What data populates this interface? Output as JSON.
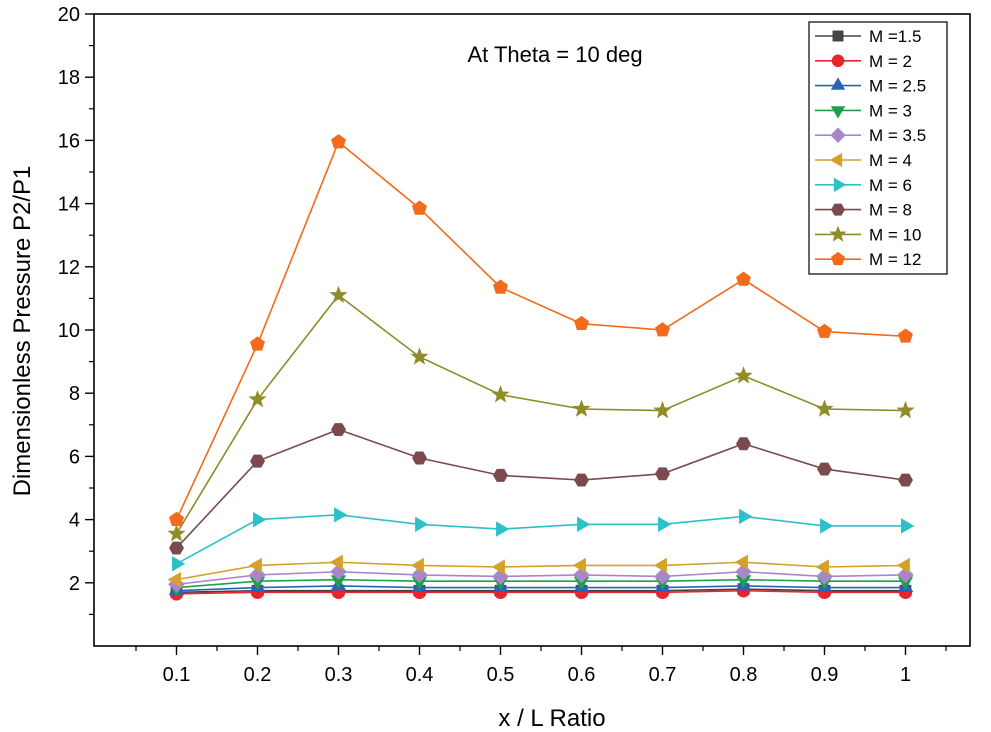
{
  "chart_data": {
    "type": "line",
    "title": "At Theta = 10 deg",
    "xlabel": "x / L Ratio",
    "ylabel": "Dimensionless Pressure P2/P1",
    "x": [
      0.1,
      0.2,
      0.3,
      0.4,
      0.5,
      0.6,
      0.7,
      0.8,
      0.9,
      1.0
    ],
    "x_tick_labels": [
      "0.1",
      "0.2",
      "0.3",
      "0.4",
      "0.5",
      "0.6",
      "0.7",
      "0.8",
      "0.9",
      "1"
    ],
    "xlim": [
      0.0,
      1.05
    ],
    "ylim": [
      0,
      20
    ],
    "y_ticks": [
      2,
      4,
      6,
      8,
      10,
      12,
      14,
      16,
      18,
      20
    ],
    "y_tick_labels": [
      "2",
      "4",
      "6",
      "8",
      "10",
      "12",
      "14",
      "16",
      "18",
      "20"
    ],
    "legend_position": "top-right",
    "series": [
      {
        "name": "M =1.5",
        "color": "#444444",
        "marker": "square",
        "values": [
          1.7,
          1.75,
          1.75,
          1.75,
          1.75,
          1.75,
          1.75,
          1.8,
          1.75,
          1.75
        ]
      },
      {
        "name": "M = 2",
        "color": "#e8252b",
        "marker": "circle",
        "values": [
          1.65,
          1.7,
          1.7,
          1.7,
          1.7,
          1.7,
          1.7,
          1.75,
          1.7,
          1.7
        ]
      },
      {
        "name": "M = 2.5",
        "color": "#2a62b8",
        "marker": "triangle-up",
        "values": [
          1.75,
          1.85,
          1.9,
          1.85,
          1.85,
          1.85,
          1.85,
          1.9,
          1.85,
          1.85
        ]
      },
      {
        "name": "M = 3",
        "color": "#1aa24b",
        "marker": "triangle-down",
        "values": [
          1.85,
          2.05,
          2.1,
          2.05,
          2.05,
          2.05,
          2.05,
          2.1,
          2.05,
          2.05
        ]
      },
      {
        "name": "M = 3.5",
        "color": "#a986c8",
        "marker": "diamond",
        "values": [
          1.95,
          2.25,
          2.35,
          2.25,
          2.2,
          2.25,
          2.2,
          2.35,
          2.2,
          2.25
        ]
      },
      {
        "name": "M = 4",
        "color": "#d4a12a",
        "marker": "triangle-left",
        "values": [
          2.1,
          2.55,
          2.65,
          2.55,
          2.5,
          2.55,
          2.55,
          2.65,
          2.5,
          2.55
        ]
      },
      {
        "name": "M = 6",
        "color": "#2cc0c8",
        "marker": "triangle-right",
        "values": [
          2.6,
          4.0,
          4.15,
          3.85,
          3.7,
          3.85,
          3.85,
          4.1,
          3.8,
          3.8
        ]
      },
      {
        "name": "M = 8",
        "color": "#7b4a4e",
        "marker": "hexagon",
        "values": [
          3.1,
          5.85,
          6.85,
          5.95,
          5.4,
          5.25,
          5.45,
          6.4,
          5.6,
          5.25
        ]
      },
      {
        "name": "M = 10",
        "color": "#8f8c2a",
        "marker": "star",
        "values": [
          3.55,
          7.8,
          11.1,
          9.15,
          7.95,
          7.5,
          7.45,
          8.55,
          7.5,
          7.45
        ]
      },
      {
        "name": "M = 12",
        "color": "#f26a1b",
        "marker": "pentagon",
        "values": [
          4.0,
          9.55,
          15.95,
          13.85,
          11.35,
          10.2,
          10.0,
          11.6,
          9.95,
          9.8
        ]
      }
    ]
  }
}
